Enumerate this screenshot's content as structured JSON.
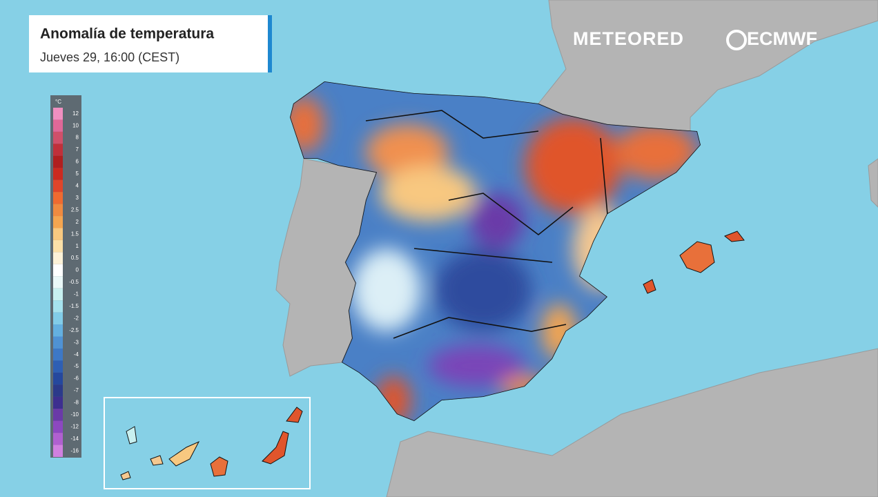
{
  "header": {
    "title": "Anomalía de temperatura",
    "subtitle": "Jueves 29, 16:00 (CEST)"
  },
  "logos": {
    "primary": "METEORED",
    "secondary": "ECMWF"
  },
  "legend": {
    "unit": "°C",
    "ticks": [
      12,
      10,
      8,
      7,
      6,
      5,
      4,
      3,
      2.5,
      2,
      1.5,
      1,
      0.5,
      0,
      -0.5,
      -1,
      -1.5,
      -2,
      -2.5,
      -3,
      -4,
      -5,
      -6,
      -7,
      -8,
      -10,
      -12,
      -14,
      -16
    ],
    "colors": [
      "#f08fc0",
      "#e06898",
      "#d0506a",
      "#c0303a",
      "#b01f1f",
      "#cc2a20",
      "#e0452a",
      "#f06a30",
      "#f08a40",
      "#f5a550",
      "#f8c880",
      "#fbe0a8",
      "#fdf2d8",
      "#ffffff",
      "#eaf8f8",
      "#c8f0f0",
      "#a6e2ee",
      "#82cce8",
      "#64b0e0",
      "#4f92d4",
      "#3d78c6",
      "#2e5fb4",
      "#25489e",
      "#2b3a8a",
      "#3d2f8f",
      "#6a3aa8",
      "#8c48c0",
      "#b060d0",
      "#d080e0"
    ]
  }
}
